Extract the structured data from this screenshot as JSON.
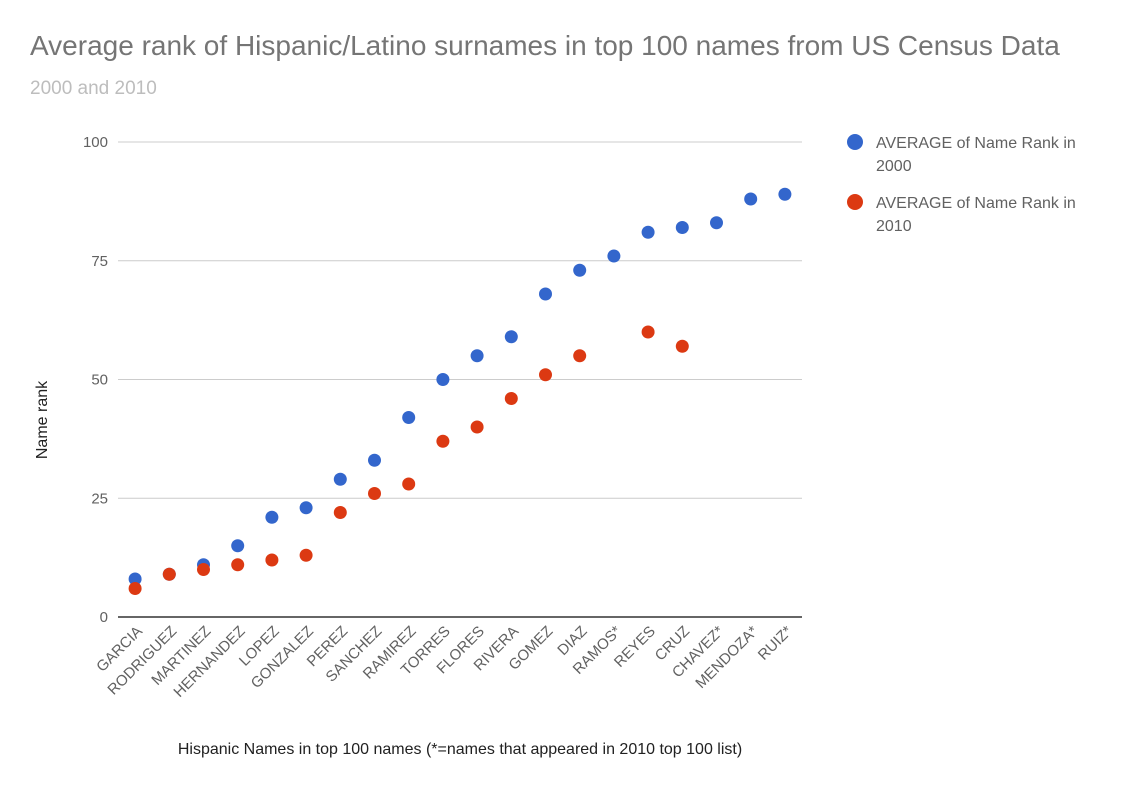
{
  "chart_data": {
    "type": "scatter",
    "title": "Average rank of Hispanic/Latino surnames in top 100 names from US Census Data",
    "subtitle": "2000 and 2010",
    "xlabel": "Hispanic Names in top 100 names (*=names that appeared in 2010 top 100 list)",
    "ylabel": "Name rank",
    "ylim": [
      0,
      100
    ],
    "yticks": [
      0,
      25,
      50,
      75,
      100
    ],
    "grid": true,
    "legend_position": "right",
    "categories": [
      "GARCIA",
      "RODRIGUEZ",
      "MARTINEZ",
      "HERNANDEZ",
      "LOPEZ",
      "GONZALEZ",
      "PEREZ",
      "SANCHEZ",
      "RAMIREZ",
      "TORRES",
      "FLORES",
      "RIVERA",
      "GOMEZ",
      "DIAZ",
      "RAMOS*",
      "REYES",
      "CRUZ",
      "CHAVEZ*",
      "MENDOZA*",
      "RUIZ*"
    ],
    "series": [
      {
        "name": "AVERAGE of Name Rank in 2000",
        "color": "#3366cc",
        "values": [
          8,
          9,
          11,
          15,
          21,
          23,
          29,
          33,
          42,
          50,
          55,
          59,
          68,
          73,
          76,
          81,
          82,
          83,
          88,
          89
        ]
      },
      {
        "name": "AVERAGE of Name Rank in 2010",
        "color": "#dc3912",
        "values": [
          6,
          9,
          10,
          11,
          12,
          13,
          22,
          26,
          28,
          37,
          40,
          46,
          51,
          55,
          null,
          60,
          57,
          null,
          null,
          null
        ]
      }
    ]
  }
}
